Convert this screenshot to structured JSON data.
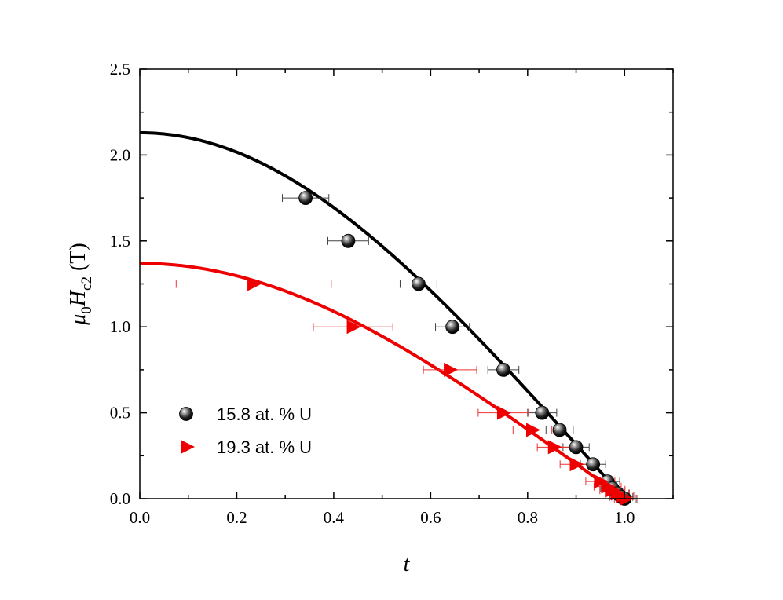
{
  "chart_data": {
    "type": "scatter",
    "xlabel": "t",
    "ylabel": {
      "base": "μ",
      "sub0": "0",
      "mid": "H",
      "sub1": "c2",
      "unit": " (T)"
    },
    "xlim": [
      0.0,
      1.1
    ],
    "ylim": [
      0.0,
      2.5
    ],
    "xticks": [
      "0.0",
      "0.2",
      "0.4",
      "0.6",
      "0.8",
      "1.0"
    ],
    "xtick_values": [
      0.0,
      0.2,
      0.4,
      0.6,
      0.8,
      1.0
    ],
    "yticks": [
      "0.0",
      "0.5",
      "1.0",
      "1.5",
      "2.0",
      "2.5"
    ],
    "ytick_values": [
      0.0,
      0.5,
      1.0,
      1.5,
      2.0,
      2.5
    ],
    "grid": false,
    "legend_position": "bottom-left",
    "series": [
      {
        "name": "15.8 at. % U",
        "marker": "sphere",
        "color": "#000000",
        "x": [
          0.342,
          0.43,
          0.575,
          0.645,
          0.75,
          0.83,
          0.866,
          0.9,
          0.935,
          0.965,
          0.975,
          0.985,
          0.993,
          1.0
        ],
        "y": [
          1.75,
          1.5,
          1.25,
          1.0,
          0.75,
          0.5,
          0.4,
          0.3,
          0.2,
          0.1,
          0.06,
          0.03,
          0.01,
          0.0
        ],
        "xerr": [
          0.048,
          0.042,
          0.038,
          0.035,
          0.032,
          0.03,
          0.028,
          0.027,
          0.026,
          0.025,
          0.024,
          0.024,
          0.024,
          0.024
        ],
        "fit_hc2_0": 2.13
      },
      {
        "name": "19.3 at. % U",
        "marker": "triangle-right",
        "color": "#ee0000",
        "x": [
          0.235,
          0.44,
          0.64,
          0.75,
          0.81,
          0.855,
          0.9,
          0.95,
          0.965,
          0.975,
          0.985,
          0.995,
          1.003
        ],
        "y": [
          1.25,
          1.0,
          0.75,
          0.5,
          0.4,
          0.3,
          0.2,
          0.1,
          0.07,
          0.05,
          0.03,
          0.015,
          0.0
        ],
        "xerr": [
          0.16,
          0.082,
          0.055,
          0.052,
          0.04,
          0.035,
          0.033,
          0.03,
          0.028,
          0.026,
          0.025,
          0.024,
          0.024
        ],
        "fit_hc2_0": 1.37
      }
    ]
  }
}
